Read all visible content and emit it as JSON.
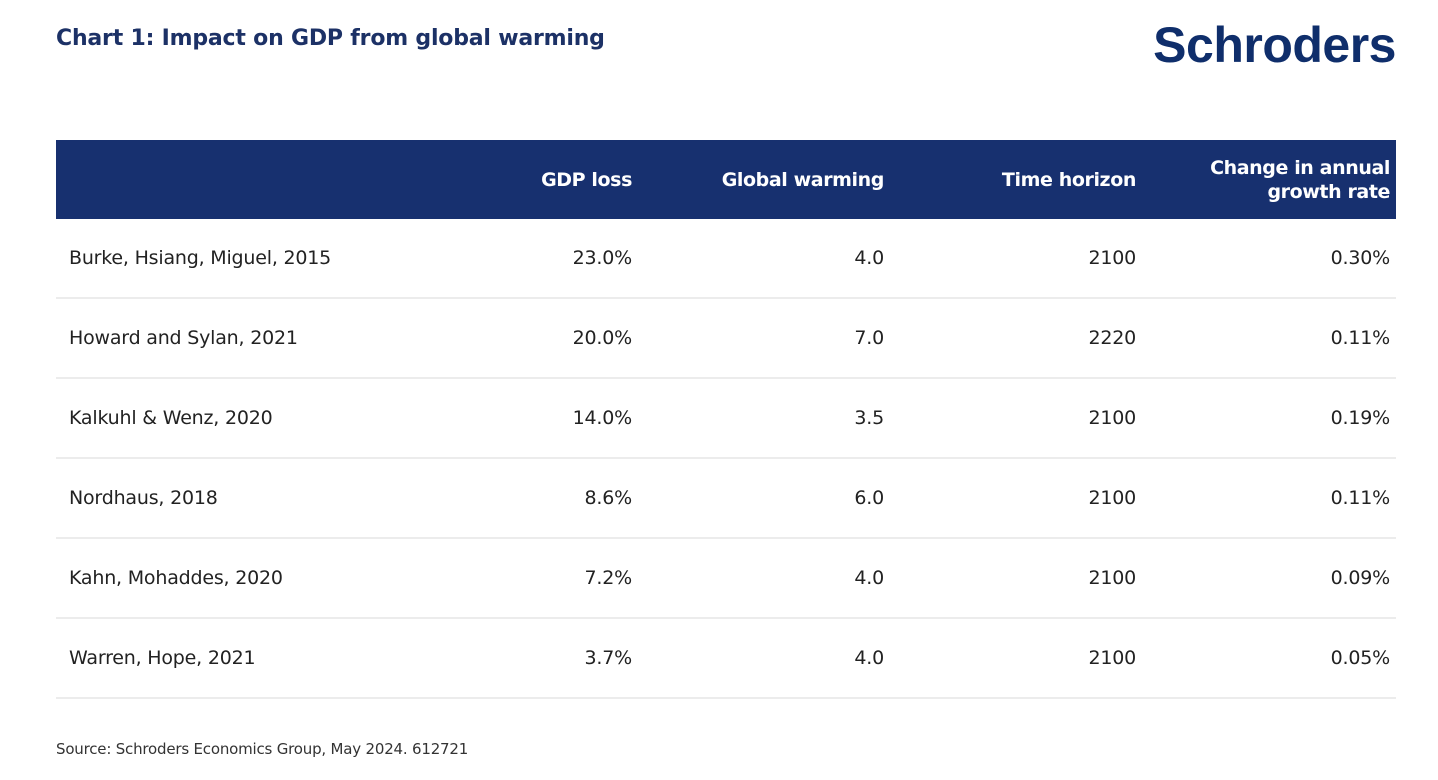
{
  "header": {
    "title": "Chart 1: Impact on GDP from global warming",
    "brand": "Schroders"
  },
  "colors": {
    "title": "#1c3166",
    "brand": "#0f2e6b",
    "table_header_bg": "#17306f",
    "table_header_text": "#ffffff",
    "row_divider": "#ececec"
  },
  "chart_data": {
    "type": "table",
    "title": "Chart 1: Impact on GDP from global warming",
    "columns": [
      "",
      "GDP loss",
      "Global warming",
      "Time horizon",
      "Change in annual growth rate"
    ],
    "rows": [
      {
        "study": "Burke, Hsiang, Miguel, 2015",
        "gdp_loss": "23.0%",
        "global_warming": "4.0",
        "time_horizon": "2100",
        "growth_rate_change": "0.30%"
      },
      {
        "study": "Howard and Sylan, 2021",
        "gdp_loss": "20.0%",
        "global_warming": "7.0",
        "time_horizon": "2220",
        "growth_rate_change": "0.11%"
      },
      {
        "study": "Kalkuhl & Wenz, 2020",
        "gdp_loss": "14.0%",
        "global_warming": "3.5",
        "time_horizon": "2100",
        "growth_rate_change": "0.19%"
      },
      {
        "study": "Nordhaus, 2018",
        "gdp_loss": "8.6%",
        "global_warming": "6.0",
        "time_horizon": "2100",
        "growth_rate_change": "0.11%"
      },
      {
        "study": "Kahn, Mohaddes, 2020",
        "gdp_loss": "7.2%",
        "global_warming": "4.0",
        "time_horizon": "2100",
        "growth_rate_change": "0.09%"
      },
      {
        "study": "Warren, Hope, 2021",
        "gdp_loss": "3.7%",
        "global_warming": "4.0",
        "time_horizon": "2100",
        "growth_rate_change": "0.05%"
      }
    ],
    "source": "Source: Schroders Economics Group, May 2024. 612721"
  },
  "table": {
    "headers": {
      "study": "",
      "gdp_loss": "GDP loss",
      "global_warming": "Global warming",
      "time_horizon": "Time horizon",
      "growth_rate_line1": "Change in annual",
      "growth_rate_line2": "growth rate"
    }
  },
  "footer": {
    "source": "Source: Schroders Economics Group, May 2024. 612721"
  }
}
